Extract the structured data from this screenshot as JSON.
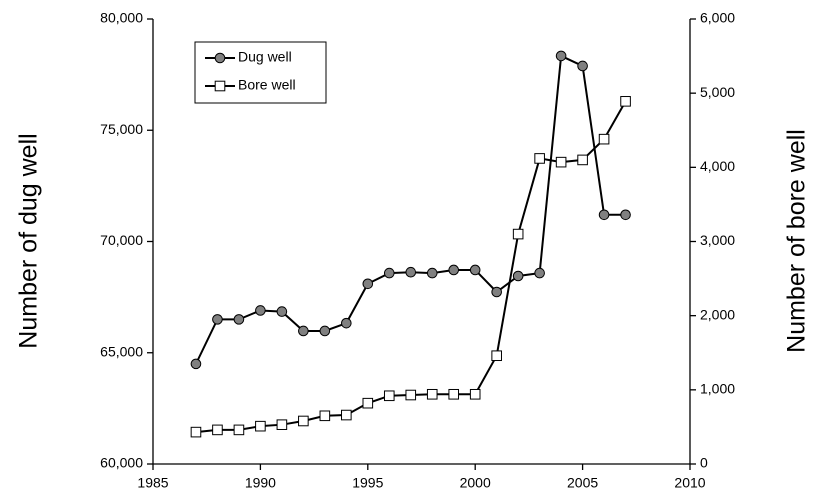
{
  "chart_data": {
    "type": "line",
    "x": [
      1987,
      1988,
      1989,
      1990,
      1991,
      1992,
      1993,
      1994,
      1995,
      1996,
      1997,
      1998,
      1999,
      2000,
      2001,
      2002,
      2003,
      2004,
      2005,
      2006,
      2007
    ],
    "series": [
      {
        "name": "Dug well",
        "color": "#808080",
        "marker": "circle",
        "values": [
          64500,
          66500,
          66500,
          66900,
          66850,
          65980,
          65980,
          66330,
          68100,
          68580,
          68620,
          68580,
          68720,
          68720,
          67730,
          68450,
          68580,
          78340,
          77890,
          71200,
          71200
        ]
      },
      {
        "name": "Bore well",
        "color": "#ffffff",
        "marker": "square",
        "axis": "y2",
        "values": [
          430,
          460,
          460,
          510,
          530,
          580,
          650,
          660,
          820,
          920,
          930,
          940,
          940,
          940,
          1460,
          3100,
          4120,
          4070,
          4100,
          4380,
          4890
        ]
      }
    ],
    "ylabel": "Number of dug well",
    "y2label": "Number of bore well",
    "xlim": [
      1985,
      2010
    ],
    "xticks": [
      1985,
      1990,
      1995,
      2000,
      2005,
      2010
    ],
    "ylim": [
      60000,
      80000
    ],
    "yticks": [
      {
        "value": 60000,
        "label": "60,000"
      },
      {
        "value": 65000,
        "label": "65,000"
      },
      {
        "value": 70000,
        "label": "70,000"
      },
      {
        "value": 75000,
        "label": "75,000"
      },
      {
        "value": 80000,
        "label": "80,000"
      }
    ],
    "y2lim": [
      0,
      6000
    ],
    "y2ticks": [
      0,
      {
        "value": 1000,
        "label": "1,000"
      },
      {
        "value": 2000,
        "label": "2,000"
      },
      {
        "value": 3000,
        "label": "3,000"
      },
      {
        "value": 4000,
        "label": "4,000"
      },
      {
        "value": 5000,
        "label": "5,000"
      },
      {
        "value": 6000,
        "label": "6,000"
      }
    ],
    "legend": "upper-left",
    "grid": false
  }
}
